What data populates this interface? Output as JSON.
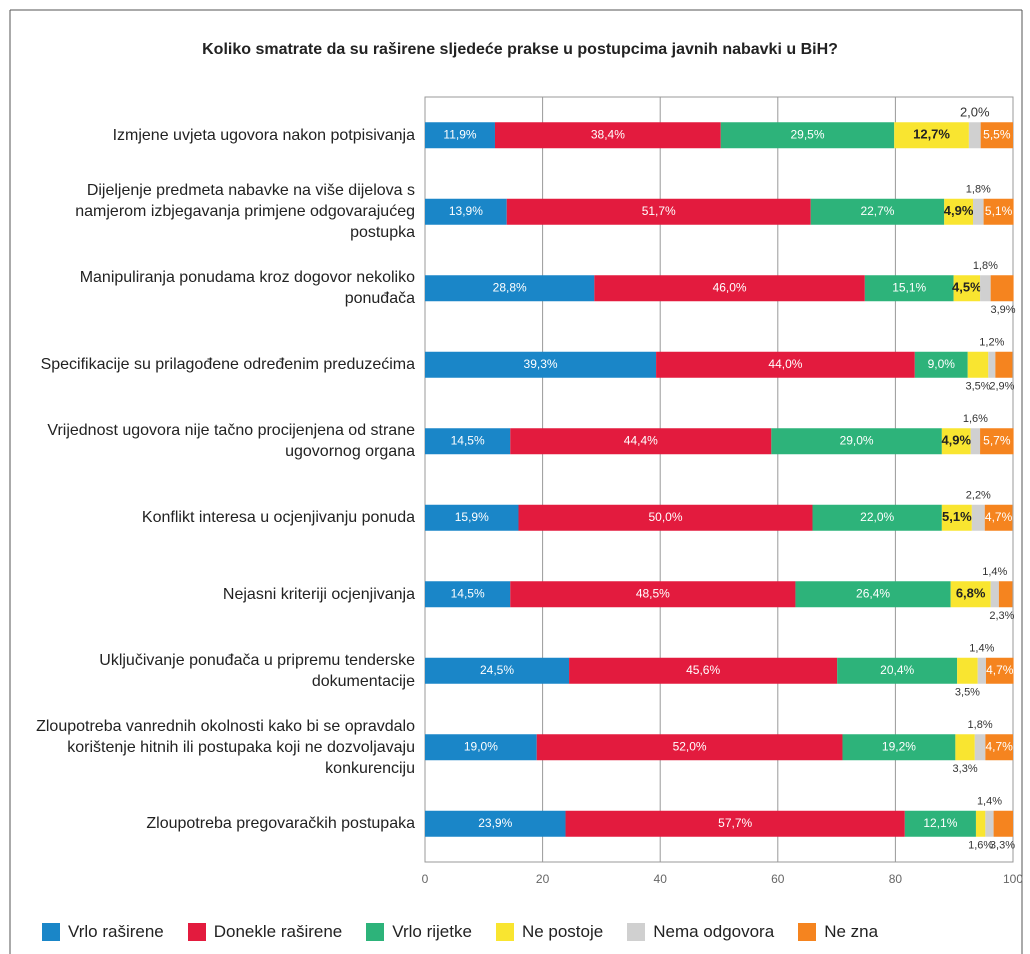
{
  "chart_data": {
    "type": "stacked_bar_horizontal",
    "title": "Koliko smatrate da su raširene sljedeće prakse u postupcima javnih nabavki u BiH?",
    "categories": [
      "Izmjene uvjeta ugovora nakon potpisivanja",
      "Dijeljenje predmeta nabavke na više dijelova s namjerom izbjegavanja primjene odgovarajućeg postupka",
      "Manipuliranja ponudama kroz dogovor nekoliko ponuđača",
      "Specifikacije su prilagođene određenim preduzećima",
      "Vrijednost ugovora nije tačno procijenjena od strane ugovornog organa",
      "Konflikt interesa u ocjenjivanju ponuda",
      "Nejasni kriteriji ocjenjivanja",
      "Uključivanje ponuđača u pripremu tenderske dokumentacije",
      "Zloupotreba vanrednih okolnosti kako bi se opravdalo korištenje hitnih ili postupaka koji ne dozvoljavaju konkurenciju",
      "Zloupotreba pregovaračkih postupaka"
    ],
    "series": [
      {
        "name": "Vrlo raširene",
        "color": "#1a86c8",
        "values": [
          11.9,
          13.9,
          28.8,
          39.3,
          14.5,
          15.9,
          14.5,
          24.5,
          19.0,
          23.9
        ],
        "value_labels": [
          "11,9%",
          "13,9%",
          "28,8%",
          "39,3%",
          "14,5%",
          "15,9%",
          "14,5%",
          "24,5%",
          "19,0%",
          "23,9%"
        ]
      },
      {
        "name": "Donekle raširene",
        "color": "#e31b3e",
        "values": [
          38.4,
          51.7,
          46.0,
          44.0,
          44.4,
          50.0,
          48.5,
          45.6,
          52.0,
          57.7
        ],
        "value_labels": [
          "38,4%",
          "51,7%",
          "46,0%",
          "44,0%",
          "44,4%",
          "50,0%",
          "48,5%",
          "45,6%",
          "52,0%",
          "57,7%"
        ]
      },
      {
        "name": "Vrlo rijetke",
        "color": "#2db37a",
        "values": [
          29.5,
          22.7,
          15.1,
          9.0,
          29.0,
          22.0,
          26.4,
          20.4,
          19.2,
          12.1
        ],
        "value_labels": [
          "29,5%",
          "22,7%",
          "15,1%",
          "9,0%",
          "29,0%",
          "22,0%",
          "26,4%",
          "20,4%",
          "19,2%",
          "12,1%"
        ]
      },
      {
        "name": "Ne postoje",
        "color": "#f9e530",
        "values": [
          12.7,
          4.9,
          4.5,
          3.5,
          4.9,
          5.1,
          6.8,
          3.5,
          3.3,
          1.6
        ],
        "value_labels": [
          "12,7%",
          "4,9%",
          "4,5%",
          "3,5%",
          "4,9%",
          "5,1%",
          "6,8%",
          "3,5%",
          "3,3%",
          "1,6%"
        ]
      },
      {
        "name": "Nema odgovora",
        "color": "#d0d0d0",
        "values": [
          2.0,
          1.8,
          1.8,
          1.2,
          1.6,
          2.2,
          1.4,
          1.4,
          1.8,
          1.4
        ],
        "value_labels": [
          "2,0%",
          "1,8%",
          "1,8%",
          "1,2%",
          "1,6%",
          "2,2%",
          "1,4%",
          "1,4%",
          "1,8%",
          "1,4%"
        ]
      },
      {
        "name": "Ne zna",
        "color": "#f5841f",
        "values": [
          5.5,
          5.1,
          3.9,
          2.9,
          5.7,
          4.7,
          2.3,
          4.7,
          4.7,
          3.3
        ],
        "value_labels": [
          "5,5%",
          "5,1%",
          "3,9%",
          "2,9%",
          "5,7%",
          "4,7%",
          "2,3%",
          "4,7%",
          "4,7%",
          "3,3%"
        ]
      }
    ],
    "xlim": [
      0,
      100
    ],
    "xticks": [
      0,
      20,
      40,
      60,
      80,
      100
    ],
    "grid": true
  }
}
